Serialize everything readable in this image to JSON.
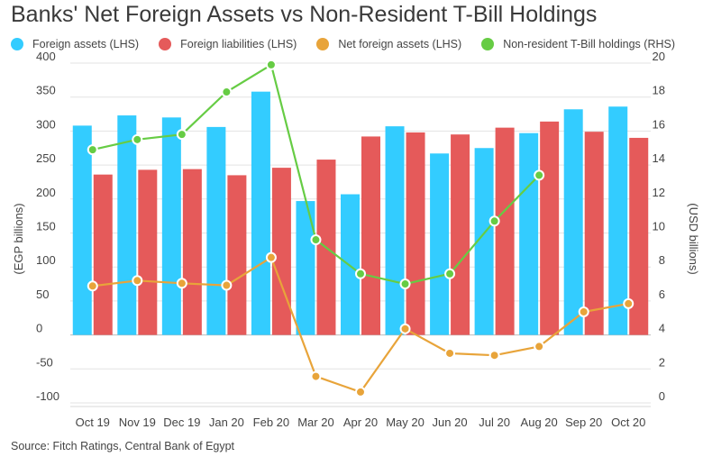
{
  "chart_data": {
    "type": "bar",
    "title": "Banks' Net Foreign Assets vs Non-Resident T-Bill Holdings",
    "ylabel": "(EGP billions)",
    "y2label": "(USD billions)",
    "source": "Source: Fitch Ratings, Central Bank of Egypt",
    "categories": [
      "Oct 19",
      "Nov 19",
      "Dec 19",
      "Jan 20",
      "Feb 20",
      "Mar 20",
      "Apr 20",
      "May 20",
      "Jun 20",
      "Jul 20",
      "Aug 20",
      "Sep 20",
      "Oct 20"
    ],
    "ylim": [
      -100,
      400
    ],
    "y2lim": [
      0,
      20
    ],
    "yticks": [
      "400",
      "350",
      "300",
      "250",
      "200",
      "150",
      "100",
      "50",
      "0",
      "-50",
      "-100"
    ],
    "y2ticks": [
      "20",
      "18",
      "16",
      "14",
      "12",
      "10",
      "8",
      "6",
      "4",
      "2",
      "0"
    ],
    "legend_position": "top",
    "series": [
      {
        "name": "Foreign assets (LHS)",
        "type": "bar",
        "axis": "left",
        "color": "#33ccff",
        "values": [
          308,
          323,
          320,
          306,
          358,
          197,
          207,
          307,
          267,
          275,
          297,
          332,
          336
        ]
      },
      {
        "name": "Foreign liabilities (LHS)",
        "type": "bar",
        "axis": "left",
        "color": "#e55a5a",
        "values": [
          236,
          243,
          244,
          235,
          246,
          258,
          292,
          298,
          295,
          305,
          314,
          299,
          290
        ]
      },
      {
        "name": "Net foreign assets (LHS)",
        "type": "line",
        "axis": "left",
        "color": "#e8a43a",
        "values": [
          72,
          80,
          76,
          73,
          114,
          -61,
          -84,
          9,
          -27,
          -30,
          -17,
          34,
          46
        ]
      },
      {
        "name": "Non-resident T-Bill holdings (RHS)",
        "type": "line",
        "axis": "right",
        "color": "#66cc44",
        "values": [
          14.9,
          15.5,
          15.8,
          18.3,
          19.9,
          9.6,
          7.6,
          7.0,
          7.6,
          10.7,
          13.4,
          null,
          null
        ]
      }
    ]
  }
}
